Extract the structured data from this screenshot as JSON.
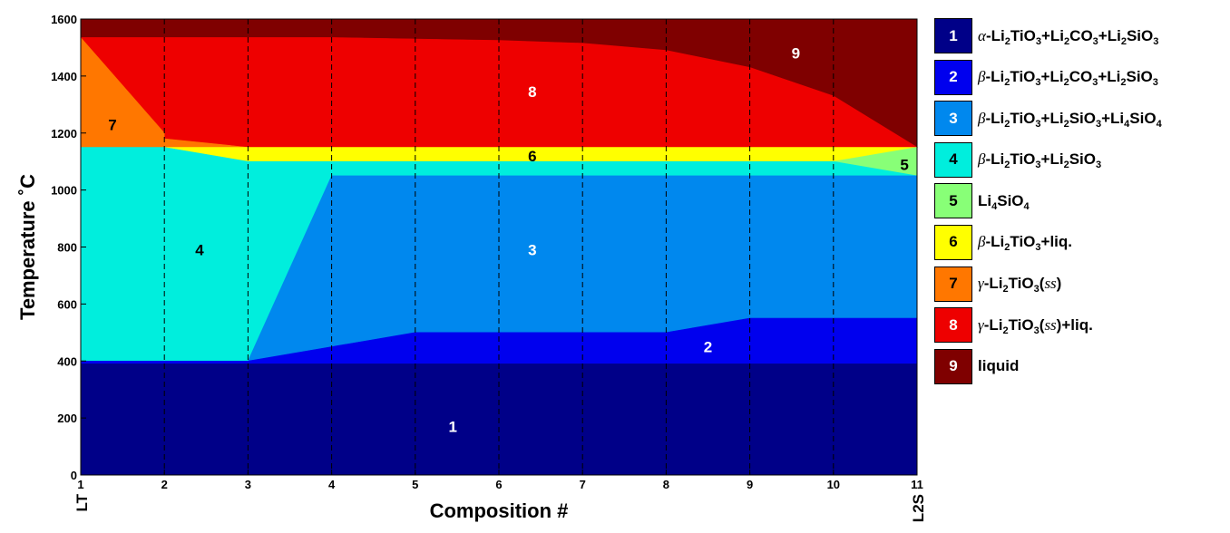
{
  "chart_data": {
    "type": "area",
    "x_ticks": [
      "1",
      "2",
      "3",
      "4",
      "5",
      "6",
      "7",
      "8",
      "9",
      "10",
      "11"
    ],
    "y_ticks": [
      "0",
      "200",
      "400",
      "600",
      "800",
      "1000",
      "1200",
      "1400",
      "1600"
    ],
    "xlim": [
      1,
      11
    ],
    "ylim": [
      0,
      1600
    ],
    "xlabel": "Composition #",
    "ylabel": "Temperature ˚C",
    "x_end_labels": {
      "left": "LT",
      "right": "L2S"
    },
    "grid": "dashed vertical lines at each composition",
    "legend_placement": "right",
    "regions": [
      {
        "id": 9,
        "label": "9",
        "name": "liquid",
        "color": "#7f0000",
        "label_color": "#ffffff",
        "label_at": [
          9.55,
          1480
        ],
        "polygon": [
          [
            1,
            1600
          ],
          [
            11,
            1600
          ],
          [
            11,
            1150
          ],
          [
            10,
            1330
          ],
          [
            9,
            1430
          ],
          [
            8,
            1490
          ],
          [
            7,
            1515
          ],
          [
            6,
            1525
          ],
          [
            5,
            1530
          ],
          [
            4,
            1535
          ],
          [
            3,
            1535
          ],
          [
            2,
            1535
          ],
          [
            1,
            1535
          ]
        ]
      },
      {
        "id": 8,
        "label": "8",
        "name": "γ-Li2TiO3(ss)+liq.",
        "color": "#ee0000",
        "label_color": "#ffffff",
        "label_at": [
          6.4,
          1345
        ],
        "polygon": [
          [
            1,
            1535
          ],
          [
            2,
            1535
          ],
          [
            3,
            1535
          ],
          [
            4,
            1535
          ],
          [
            5,
            1530
          ],
          [
            6,
            1525
          ],
          [
            7,
            1515
          ],
          [
            8,
            1490
          ],
          [
            9,
            1430
          ],
          [
            10,
            1330
          ],
          [
            11,
            1150
          ],
          [
            3,
            1150
          ],
          [
            2,
            1180
          ],
          [
            2,
            1200
          ]
        ]
      },
      {
        "id": 7,
        "label": "7",
        "name": "γ-Li2TiO3(ss)",
        "color": "#ff7700",
        "label_color": "#000000",
        "label_at": [
          1.38,
          1230
        ],
        "polygon": [
          [
            1,
            1535
          ],
          [
            2,
            1200
          ],
          [
            2,
            1180
          ],
          [
            3,
            1150
          ],
          [
            2,
            1150
          ],
          [
            1,
            1150
          ]
        ]
      },
      {
        "id": 6,
        "label": "6",
        "name": "β-Li2TiO3+liq.",
        "color": "#ffff00",
        "label_color": "#000000",
        "label_at": [
          6.4,
          1120
        ],
        "polygon": [
          [
            2,
            1150
          ],
          [
            11,
            1150
          ],
          [
            10,
            1100
          ],
          [
            3,
            1100
          ]
        ]
      },
      {
        "id": 5,
        "label": "5",
        "name": "Li4SiO4",
        "color": "#88ff77",
        "label_color": "#000000",
        "label_at": [
          10.85,
          1090
        ],
        "polygon": [
          [
            10,
            1100
          ],
          [
            11,
            1150
          ],
          [
            11,
            1050
          ]
        ]
      },
      {
        "id": 4,
        "label": "4",
        "name": "β-Li2TiO3+Li2SiO3",
        "color": "#00eedd",
        "label_color": "#000000",
        "label_at": [
          2.42,
          790
        ],
        "polygon": [
          [
            1,
            1150
          ],
          [
            2,
            1150
          ],
          [
            3,
            1100
          ],
          [
            10,
            1100
          ],
          [
            11,
            1050
          ],
          [
            4,
            1050
          ],
          [
            3,
            400
          ],
          [
            1,
            400
          ]
        ]
      },
      {
        "id": 3,
        "label": "3",
        "name": "β-Li2TiO3+Li2SiO3+Li4SiO4",
        "color": "#0088ee",
        "label_color": "#ffffff",
        "label_at": [
          6.4,
          790
        ],
        "polygon": [
          [
            4,
            1050
          ],
          [
            11,
            1050
          ],
          [
            11,
            550
          ],
          [
            9,
            550
          ],
          [
            8,
            500
          ],
          [
            7,
            500
          ],
          [
            6,
            500
          ],
          [
            5,
            500
          ],
          [
            4,
            450
          ],
          [
            3,
            400
          ]
        ]
      },
      {
        "id": 2,
        "label": "2",
        "name": "β-Li2TiO3+Li2CO3+Li2SiO3",
        "color": "#0000ee",
        "label_color": "#ffffff",
        "label_at": [
          8.5,
          450
        ],
        "polygon": [
          [
            3,
            400
          ],
          [
            4,
            450
          ],
          [
            5,
            500
          ],
          [
            6,
            500
          ],
          [
            7,
            500
          ],
          [
            8,
            500
          ],
          [
            9,
            550
          ],
          [
            11,
            550
          ],
          [
            11,
            390
          ],
          [
            1,
            390
          ],
          [
            1,
            400
          ]
        ]
      },
      {
        "id": 1,
        "label": "1",
        "name": "α-Li2TiO3+Li2CO3+Li2SiO3",
        "color": "#000088",
        "label_color": "#ffffff",
        "label_at": [
          5.45,
          170
        ],
        "polygon": [
          [
            1,
            0
          ],
          [
            11,
            0
          ],
          [
            11,
            390
          ],
          [
            1,
            390
          ]
        ]
      }
    ]
  },
  "legend": [
    {
      "num": "1",
      "color": "#000088",
      "text_color": "#ffffff",
      "label_html": "<i>α</i>-Li<sub>2</sub>TiO<sub>3</sub>+Li<sub>2</sub>CO<sub>3</sub>+Li<sub>2</sub>SiO<sub>3</sub>"
    },
    {
      "num": "2",
      "color": "#0000ee",
      "text_color": "#ffffff",
      "label_html": "<i>β</i>-Li<sub>2</sub>TiO<sub>3</sub>+Li<sub>2</sub>CO<sub>3</sub>+Li<sub>2</sub>SiO<sub>3</sub>"
    },
    {
      "num": "3",
      "color": "#0088ee",
      "text_color": "#ffffff",
      "label_html": "<i>β</i>-Li<sub>2</sub>TiO<sub>3</sub>+Li<sub>2</sub>SiO<sub>3</sub>+Li<sub>4</sub>SiO<sub>4</sub>"
    },
    {
      "num": "4",
      "color": "#00eedd",
      "text_color": "#000000",
      "label_html": "<i>β</i>-Li<sub>2</sub>TiO<sub>3</sub>+Li<sub>2</sub>SiO<sub>3</sub>"
    },
    {
      "num": "5",
      "color": "#88ff77",
      "text_color": "#000000",
      "label_html": "Li<sub>4</sub>SiO<sub>4</sub>"
    },
    {
      "num": "6",
      "color": "#ffff00",
      "text_color": "#000000",
      "label_html": "<i>β</i>-Li<sub>2</sub>TiO<sub>3</sub>+liq."
    },
    {
      "num": "7",
      "color": "#ff7700",
      "text_color": "#000000",
      "label_html": "<i>γ</i>-Li<sub>2</sub>TiO<sub>3</sub>(<i>ss</i>)"
    },
    {
      "num": "8",
      "color": "#ee0000",
      "text_color": "#ffffff",
      "label_html": "<i>γ</i>-Li<sub>2</sub>TiO<sub>3</sub>(<i>ss</i>)+liq."
    },
    {
      "num": "9",
      "color": "#7f0000",
      "text_color": "#ffffff",
      "label_html": "liquid"
    }
  ]
}
